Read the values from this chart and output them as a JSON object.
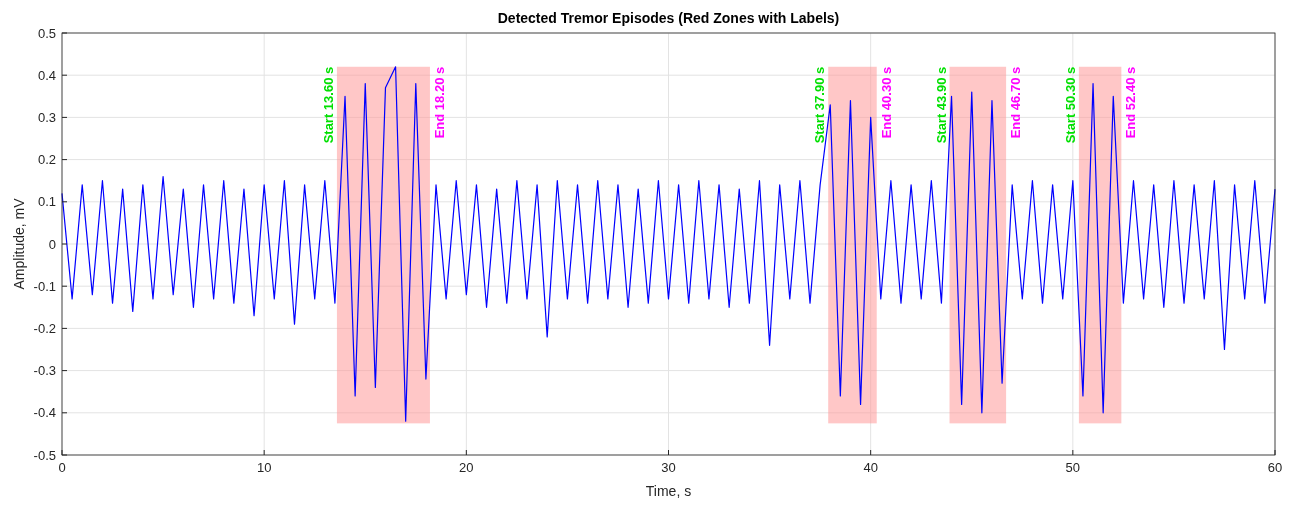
{
  "chart_data": {
    "type": "line",
    "title": "Detected Tremor Episodes (Red Zones with Labels)",
    "xlabel": "Time, s",
    "ylabel": "Amplitude, mV",
    "x": [
      0,
      0.5,
      1,
      1.5,
      2,
      2.5,
      3,
      3.5,
      4,
      4.5,
      5,
      5.5,
      6,
      6.5,
      7,
      7.5,
      8,
      8.5,
      9,
      9.5,
      10,
      10.5,
      11,
      11.5,
      12,
      12.5,
      13,
      13.5,
      14,
      14.5,
      15,
      15.5,
      16,
      16.5,
      17,
      17.5,
      18,
      18.5,
      19,
      19.5,
      20,
      20.5,
      21,
      21.5,
      22,
      22.5,
      23,
      23.5,
      24,
      24.5,
      25,
      25.5,
      26,
      26.5,
      27,
      27.5,
      28,
      28.5,
      29,
      29.5,
      30,
      30.5,
      31,
      31.5,
      32,
      32.5,
      33,
      33.5,
      34,
      34.5,
      35,
      35.5,
      36,
      36.5,
      37,
      37.5,
      38,
      38.5,
      39,
      39.5,
      40,
      40.5,
      41,
      41.5,
      42,
      42.5,
      43,
      43.5,
      44,
      44.5,
      45,
      45.5,
      46,
      46.5,
      47,
      47.5,
      48,
      48.5,
      49,
      49.5,
      50,
      50.5,
      51,
      51.5,
      52,
      52.5,
      53,
      53.5,
      54,
      54.5,
      55,
      55.5,
      56,
      56.5,
      57,
      57.5,
      58,
      58.5,
      59,
      59.5,
      60
    ],
    "series": [
      {
        "color": "#0000ff",
        "values": [
          0.12,
          -0.13,
          0.14,
          -0.12,
          0.15,
          -0.14,
          0.13,
          -0.16,
          0.14,
          -0.13,
          0.16,
          -0.12,
          0.13,
          -0.15,
          0.14,
          -0.13,
          0.15,
          -0.14,
          0.13,
          -0.17,
          0.14,
          -0.13,
          0.15,
          -0.19,
          0.14,
          -0.13,
          0.15,
          -0.14,
          0.35,
          -0.36,
          0.38,
          -0.34,
          0.37,
          0.42,
          -0.42,
          0.38,
          -0.32,
          0.14,
          -0.13,
          0.15,
          -0.12,
          0.14,
          -0.15,
          0.13,
          -0.14,
          0.15,
          -0.13,
          0.14,
          -0.22,
          0.15,
          -0.13,
          0.14,
          -0.14,
          0.15,
          -0.13,
          0.14,
          -0.15,
          0.13,
          -0.14,
          0.15,
          -0.13,
          0.14,
          -0.14,
          0.15,
          -0.13,
          0.14,
          -0.15,
          0.13,
          -0.14,
          0.15,
          -0.24,
          0.14,
          -0.13,
          0.15,
          -0.14,
          0.14,
          0.33,
          -0.36,
          0.34,
          -0.38,
          0.3,
          -0.13,
          0.15,
          -0.14,
          0.14,
          -0.13,
          0.15,
          -0.14,
          0.35,
          -0.38,
          0.36,
          -0.4,
          0.34,
          -0.33,
          0.14,
          -0.13,
          0.15,
          -0.14,
          0.14,
          -0.13,
          0.15,
          -0.36,
          0.38,
          -0.4,
          0.35,
          -0.14,
          0.15,
          -0.13,
          0.14,
          -0.15,
          0.15,
          -0.14,
          0.14,
          -0.13,
          0.15,
          -0.25,
          0.14,
          -0.13,
          0.15,
          -0.14,
          0.13
        ]
      }
    ],
    "xlim": [
      0,
      60
    ],
    "xticks": [
      0,
      10,
      20,
      30,
      40,
      50,
      60
    ],
    "ylim": [
      -0.5,
      0.5
    ],
    "yticks": [
      -0.5,
      -0.4,
      -0.3,
      -0.2,
      -0.1,
      0,
      0.1,
      0.2,
      0.3,
      0.4,
      0.5
    ],
    "grid": true,
    "line_style": "solid",
    "marker": "none",
    "bands": [
      {
        "axis": "x",
        "from": 13.6,
        "to": 18.2,
        "color": "#ff9999"
      },
      {
        "axis": "x",
        "from": 37.9,
        "to": 40.3,
        "color": "#ff9999"
      },
      {
        "axis": "x",
        "from": 43.9,
        "to": 46.7,
        "color": "#ff9999"
      },
      {
        "axis": "x",
        "from": 50.3,
        "to": 52.4,
        "color": "#ff9999"
      }
    ],
    "annotations": [
      {
        "text": "Start 13.60 s",
        "x": 13.6,
        "y": 0.42
      },
      {
        "text": "End 18.20 s",
        "x": 18.2,
        "y": 0.42
      },
      {
        "text": "Start 37.90 s",
        "x": 37.9,
        "y": 0.42
      },
      {
        "text": "End 40.30 s",
        "x": 40.3,
        "y": 0.42
      },
      {
        "text": "Start 43.90 s",
        "x": 43.9,
        "y": 0.42
      },
      {
        "text": "End 46.70 s",
        "x": 46.7,
        "y": 0.42
      },
      {
        "text": "Start 50.30 s",
        "x": 50.3,
        "y": 0.42
      },
      {
        "text": "End 52.40 s",
        "x": 52.4,
        "y": 0.42
      }
    ]
  }
}
